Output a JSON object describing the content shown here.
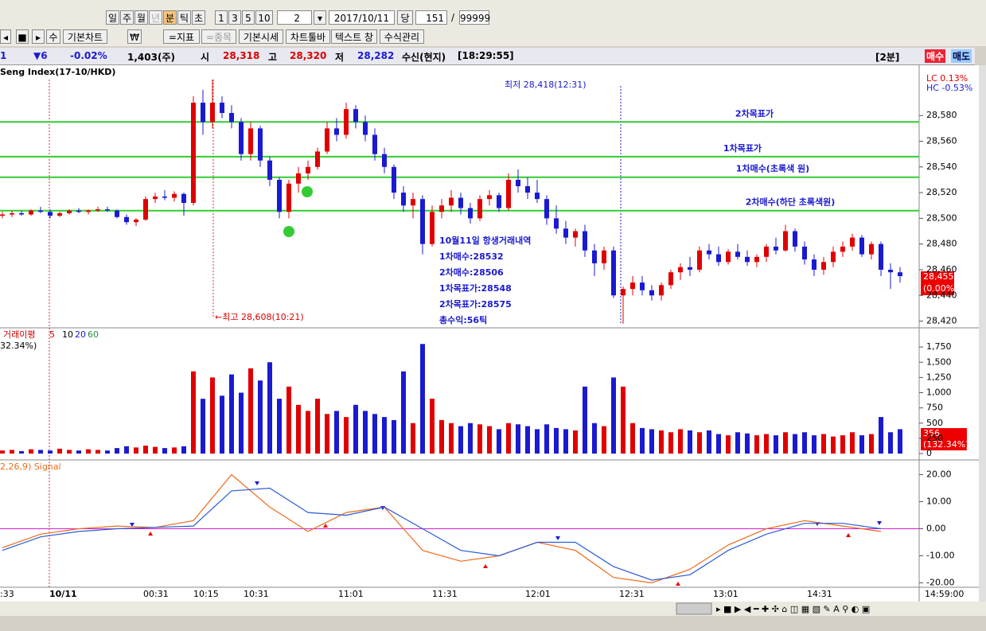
{
  "toolbar": {
    "periods": [
      "일",
      "주",
      "월",
      "년",
      "분",
      "틱",
      "초"
    ],
    "intervals": [
      "1",
      "3",
      "5",
      "10"
    ],
    "interval_value": "2",
    "date": "2017/10/11",
    "current_label": "당",
    "count": "151",
    "separator": "/",
    "max": "99999",
    "buttons": [
      "수",
      "기본차트",
      "₩",
      "=지표",
      "=종목",
      "기본시세",
      "차트툴바",
      "텍스트 창",
      "수식관리"
    ]
  },
  "info_bar": {
    "code": "1",
    "change": "▼6",
    "change_rate": "-0.02%",
    "volume": "1,403(주)",
    "open_label": "시",
    "open": "28,318",
    "high_label": "고",
    "high": "28,320",
    "low_label": "저",
    "low": "28,282",
    "feed": "수신(현지)",
    "time": "[18:29:55]",
    "interval": "[2분]",
    "buy": "매수",
    "sell": "매도"
  },
  "price_chart": {
    "type": "candlestick",
    "title": "Seng Index(17-10/HKD)",
    "lc": "LC  0.13%",
    "hc": "HC -0.53%",
    "ylim": [
      28416,
      28608
    ],
    "yticks": [
      {
        "value": 28420,
        "label": "28,420"
      },
      {
        "value": 28440,
        "label": "28,440"
      },
      {
        "value": 28460,
        "label": "28,460"
      },
      {
        "value": 28480,
        "label": "28,480"
      },
      {
        "value": 28500,
        "label": "28,500"
      },
      {
        "value": 28520,
        "label": "28,520"
      },
      {
        "value": 28540,
        "label": "28,540"
      },
      {
        "value": 28560,
        "label": "28,560"
      },
      {
        "value": 28580,
        "label": "28,580"
      }
    ],
    "up_color": "#e00000",
    "down_color": "#1a1ad0",
    "candles": [
      [
        28502,
        28505,
        28500,
        28503
      ],
      [
        28503,
        28506,
        28501,
        28504
      ],
      [
        28504,
        28506,
        28502,
        28503
      ],
      [
        28503,
        28507,
        28502,
        28506
      ],
      [
        28506,
        28509,
        28504,
        28505
      ],
      [
        28505,
        28507,
        28500,
        28502
      ],
      [
        28502,
        28505,
        28501,
        28504
      ],
      [
        28504,
        28507,
        28503,
        28506
      ],
      [
        28506,
        28508,
        28504,
        28505
      ],
      [
        28505,
        28507,
        28503,
        28506
      ],
      [
        28506,
        28509,
        28505,
        28507
      ],
      [
        28507,
        28509,
        28505,
        28506
      ],
      [
        28506,
        28507,
        28500,
        28501
      ],
      [
        28501,
        28503,
        28495,
        28497
      ],
      [
        28497,
        28500,
        28494,
        28499
      ],
      [
        28499,
        28517,
        28498,
        28515
      ],
      [
        28515,
        28520,
        28512,
        28517
      ],
      [
        28517,
        28522,
        28514,
        28516
      ],
      [
        28516,
        28521,
        28513,
        28519
      ],
      [
        28519,
        28520,
        28502,
        28512
      ],
      [
        28512,
        28595,
        28510,
        28590
      ],
      [
        28590,
        28600,
        28565,
        28575
      ],
      [
        28575,
        28608,
        28570,
        28590
      ],
      [
        28590,
        28595,
        28578,
        28582
      ],
      [
        28582,
        28588,
        28570,
        28575
      ],
      [
        28575,
        28578,
        28545,
        28550
      ],
      [
        28550,
        28575,
        28545,
        28570
      ],
      [
        28570,
        28572,
        28540,
        28545
      ],
      [
        28545,
        28548,
        28525,
        28530
      ],
      [
        28530,
        28532,
        28500,
        28505
      ],
      [
        28505,
        28530,
        28500,
        28527
      ],
      [
        28527,
        28540,
        28520,
        28535
      ],
      [
        28535,
        28545,
        28530,
        28540
      ],
      [
        28540,
        28555,
        28538,
        28552
      ],
      [
        28552,
        28575,
        28550,
        28570
      ],
      [
        28570,
        28578,
        28560,
        28565
      ],
      [
        28565,
        28590,
        28562,
        28585
      ],
      [
        28585,
        28588,
        28570,
        28575
      ],
      [
        28575,
        28580,
        28560,
        28565
      ],
      [
        28565,
        28570,
        28545,
        28550
      ],
      [
        28550,
        28555,
        28535,
        28540
      ],
      [
        28540,
        28542,
        28515,
        28520
      ],
      [
        28520,
        28525,
        28505,
        28510
      ],
      [
        28510,
        28520,
        28500,
        28515
      ],
      [
        28515,
        28518,
        28472,
        28480
      ],
      [
        28480,
        28510,
        28478,
        28505
      ],
      [
        28505,
        28515,
        28500,
        28510
      ],
      [
        28510,
        28522,
        28505,
        28516
      ],
      [
        28516,
        28520,
        28503,
        28508
      ],
      [
        28508,
        28512,
        28496,
        28500
      ],
      [
        28500,
        28518,
        28498,
        28515
      ],
      [
        28515,
        28522,
        28510,
        28518
      ],
      [
        28518,
        28520,
        28505,
        28508
      ],
      [
        28508,
        28535,
        28506,
        28530
      ],
      [
        28530,
        28538,
        28520,
        28525
      ],
      [
        28525,
        28532,
        28515,
        28520
      ],
      [
        28520,
        28530,
        28512,
        28515
      ],
      [
        28515,
        28518,
        28495,
        28500
      ],
      [
        28500,
        28510,
        28488,
        28492
      ],
      [
        28492,
        28498,
        28480,
        28485
      ],
      [
        28485,
        28492,
        28478,
        28490
      ],
      [
        28490,
        28495,
        28470,
        28475
      ],
      [
        28475,
        28480,
        28455,
        28465
      ],
      [
        28465,
        28478,
        28460,
        28475
      ],
      [
        28475,
        28478,
        28438,
        28440
      ],
      [
        28440,
        28447,
        28418,
        28445
      ],
      [
        28445,
        28455,
        28440,
        28450
      ],
      [
        28450,
        28455,
        28440,
        28444
      ],
      [
        28444,
        28448,
        28436,
        28440
      ],
      [
        28440,
        28450,
        28436,
        28448
      ],
      [
        28448,
        28460,
        28445,
        28458
      ],
      [
        28458,
        28465,
        28452,
        28462
      ],
      [
        28462,
        28470,
        28455,
        28460
      ],
      [
        28460,
        28478,
        28458,
        28475
      ],
      [
        28475,
        28480,
        28468,
        28472
      ],
      [
        28472,
        28478,
        28463,
        28466
      ],
      [
        28466,
        28476,
        28464,
        28474
      ],
      [
        28474,
        28480,
        28468,
        28470
      ],
      [
        28470,
        28475,
        28463,
        28466
      ],
      [
        28466,
        28472,
        28462,
        28470
      ],
      [
        28470,
        28480,
        28466,
        28478
      ],
      [
        28478,
        28485,
        28472,
        28475
      ],
      [
        28475,
        28495,
        28474,
        28490
      ],
      [
        28490,
        28492,
        28474,
        28478
      ],
      [
        28478,
        28482,
        28464,
        28468
      ],
      [
        28468,
        28472,
        28455,
        28460
      ],
      [
        28460,
        28470,
        28456,
        28466
      ],
      [
        28466,
        28478,
        28462,
        28474
      ],
      [
        28474,
        28482,
        28470,
        28478
      ],
      [
        28478,
        28488,
        28475,
        28485
      ],
      [
        28485,
        28487,
        28470,
        28472
      ],
      [
        28472,
        28482,
        28468,
        28480
      ],
      [
        28480,
        28482,
        28455,
        28460
      ],
      [
        28460,
        28465,
        28445,
        28458
      ],
      [
        28458,
        28462,
        28450,
        28455
      ]
    ],
    "levels": [
      {
        "value": 28575,
        "label": "2차목표가"
      },
      {
        "value": 28548,
        "label": "1차목표가"
      },
      {
        "value": 28532,
        "label": "1차매수(초록색 원)"
      },
      {
        "value": 28506,
        "label": "2차매수(하단 초록색원)"
      }
    ],
    "level_color": "#33cc33",
    "low_note": "최저 28,418(12:31)",
    "high_note": "←최고 28,608(10:21)",
    "trade_note": [
      "10월11일 항생거래내역",
      "1차매수:28532",
      "2차매수:28506",
      "1차목표가:28548",
      "2차목표가:28575",
      "총수익:56틱"
    ],
    "last_price": "28,455",
    "last_change": "(0.00%)"
  },
  "volume_chart": {
    "type": "bar",
    "legend": [
      "거래이평",
      "5",
      "10",
      "20",
      "60"
    ],
    "legend_colors": [
      "#cc0000",
      "#cc0000",
      "#000000",
      "#1a1ad0",
      "#2a8a4a"
    ],
    "partial_label": "32.34%)",
    "ylim": [
      0,
      2000
    ],
    "yticks": [
      0,
      250,
      500,
      750,
      {
        "value": 1000,
        "label": "1,000"
      },
      {
        "value": 1250,
        "label": "1,250"
      },
      {
        "value": 1500,
        "label": "1,500"
      },
      {
        "value": 1750,
        "label": "1,750"
      }
    ],
    "values": [
      50,
      60,
      40,
      70,
      60,
      50,
      80,
      60,
      50,
      70,
      60,
      50,
      90,
      120,
      100,
      130,
      110,
      90,
      100,
      120,
      1350,
      900,
      1250,
      950,
      1300,
      1000,
      1400,
      1200,
      1500,
      900,
      1100,
      800,
      700,
      900,
      650,
      700,
      600,
      800,
      700,
      650,
      600,
      550,
      1350,
      500,
      1800,
      900,
      550,
      500,
      450,
      500,
      480,
      450,
      400,
      500,
      480,
      450,
      400,
      480,
      420,
      400,
      380,
      1100,
      500,
      450,
      1250,
      1100,
      500,
      420,
      400,
      380,
      350,
      400,
      380,
      350,
      380,
      320,
      300,
      350,
      330,
      300,
      320,
      300,
      350,
      320,
      350,
      300,
      320,
      280,
      300,
      350,
      300,
      320,
      600,
      350,
      400
    ],
    "last_value": "356",
    "last_ratio": "(132.34%)"
  },
  "macd_chart": {
    "type": "line",
    "legend": "2,26,9) Signal",
    "ylim": [
      -22.5,
      22.5
    ],
    "yticks": [
      {
        "value": 20,
        "label": "20.00"
      },
      {
        "value": 10,
        "label": "10.00"
      },
      {
        "value": 0,
        "label": "0.00"
      },
      {
        "value": -10,
        "label": "-10.00"
      },
      {
        "value": -20,
        "label": "-20.00"
      }
    ],
    "x": [
      0,
      4,
      8,
      12,
      16,
      20,
      24,
      28,
      32,
      36,
      40,
      44,
      48,
      52,
      56,
      60,
      64,
      68,
      72,
      76,
      80,
      84,
      88,
      92
    ],
    "series": [
      {
        "color": "#ee6a1a",
        "values": [
          -7,
          -2,
          0,
          1,
          0.5,
          3,
          20,
          8,
          -1,
          6,
          8,
          -8,
          -12,
          -10,
          -5,
          -8,
          -18,
          -20,
          -15,
          -6,
          0,
          3,
          1,
          -1
        ]
      },
      {
        "color": "#2a5bd7",
        "values": [
          -8,
          -3,
          -1,
          0,
          0.5,
          1,
          14,
          15,
          6,
          5,
          8,
          0,
          -8,
          -10,
          -5,
          -5,
          -14,
          -19,
          -17,
          -8,
          -2,
          2,
          2,
          0
        ]
      }
    ]
  },
  "x_labels": [
    ":33",
    "10/11",
    "00:31",
    "10:15",
    "10:31",
    "11:01",
    "11:31",
    "12:01",
    "12:31",
    "13:01",
    "14:31",
    "14:59:00"
  ]
}
